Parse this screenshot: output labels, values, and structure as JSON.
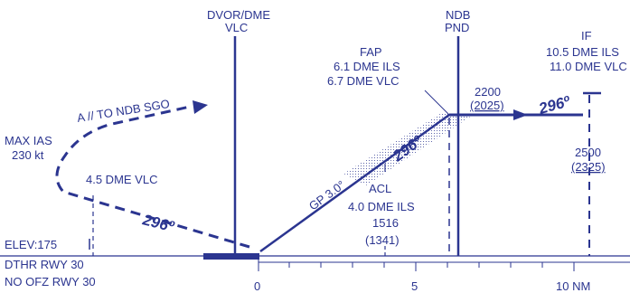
{
  "fixes": {
    "dvor_line1": "DVOR/DME",
    "dvor_line2": "VLC",
    "ndb_line1": "NDB",
    "ndb_line2": "PND",
    "if_line1": "IF",
    "if_line2": "10.5 DME ILS",
    "if_line3": "11.0 DME VLC",
    "fap_line1": "FAP",
    "fap_line2": "6.1 DME ILS",
    "fap_line3": "6.7 DME VLC",
    "acl_line1": "ACL",
    "acl_line2": "4.0 DME ILS",
    "acl_line3": "1516",
    "acl_line4": "(1341)",
    "dme45": "4.5 DME VLC"
  },
  "altitudes": {
    "a2200": "2200",
    "a2025": "(2025)",
    "a2500": "2500",
    "a2325": "(2325)"
  },
  "tracks": {
    "t296_inbound": "296º",
    "t296_glide": "296º",
    "t296_missed": "296º",
    "gp": "GP 3.0°",
    "missed_to": "A // TO NDB SGO"
  },
  "notes": {
    "max_ias_1": "MAX IAS",
    "max_ias_2": "230 kt",
    "elev": "ELEV:175",
    "dthr": "DTHR RWY 30",
    "ofz": "NO OFZ RWY 30"
  },
  "scale": {
    "tick0": "0",
    "tick5": "5",
    "tick10": "10 NM"
  },
  "colors": {
    "ink": "#2b3590"
  }
}
